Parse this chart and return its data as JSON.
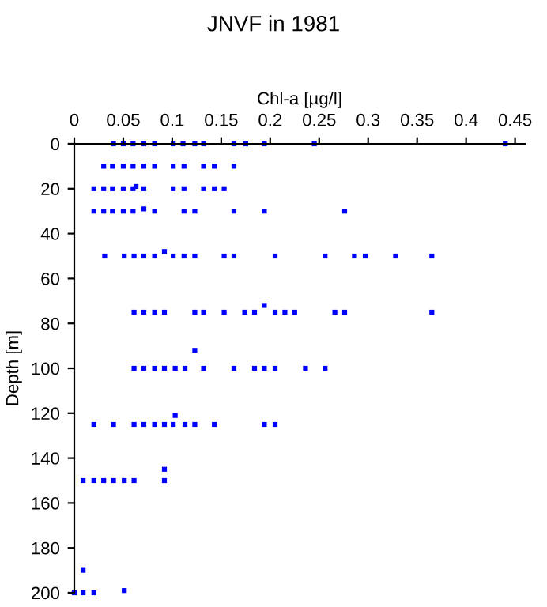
{
  "chart_data": {
    "type": "scatter",
    "title": "JNVF in 1981",
    "xlabel": "Chl-a [µg/l]",
    "ylabel": "Depth [m]",
    "x": [
      0.04,
      0.05,
      0.06,
      0.071,
      0.082,
      0.101,
      0.111,
      0.123,
      0.132,
      0.163,
      0.175,
      0.194,
      0.245,
      0.44,
      0.03,
      0.039,
      0.05,
      0.06,
      0.071,
      0.082,
      0.101,
      0.112,
      0.132,
      0.143,
      0.163,
      0.02,
      0.03,
      0.039,
      0.05,
      0.06,
      0.063,
      0.071,
      0.101,
      0.112,
      0.132,
      0.143,
      0.153,
      0.02,
      0.03,
      0.039,
      0.05,
      0.06,
      0.071,
      0.082,
      0.112,
      0.123,
      0.163,
      0.194,
      0.276,
      0.031,
      0.051,
      0.061,
      0.071,
      0.082,
      0.092,
      0.101,
      0.112,
      0.123,
      0.153,
      0.163,
      0.205,
      0.256,
      0.286,
      0.297,
      0.328,
      0.365,
      0.061,
      0.071,
      0.082,
      0.092,
      0.123,
      0.132,
      0.153,
      0.174,
      0.184,
      0.194,
      0.205,
      0.215,
      0.225,
      0.266,
      0.276,
      0.365,
      0.123,
      0.061,
      0.071,
      0.082,
      0.092,
      0.103,
      0.113,
      0.132,
      0.163,
      0.184,
      0.194,
      0.205,
      0.236,
      0.256,
      0.02,
      0.04,
      0.061,
      0.071,
      0.082,
      0.092,
      0.101,
      0.103,
      0.113,
      0.123,
      0.143,
      0.194,
      0.205,
      0.009,
      0.02,
      0.03,
      0.04,
      0.051,
      0.061,
      0.092,
      0.092,
      0.009,
      0.0,
      0.009,
      0.02,
      0.051
    ],
    "values": [
      0,
      0,
      0,
      0,
      0,
      0,
      0,
      0,
      0,
      0,
      0,
      0,
      0,
      0,
      10,
      10,
      10,
      10,
      10,
      10,
      10,
      10,
      10,
      10,
      10,
      20,
      20,
      20,
      20,
      20,
      19,
      20,
      20,
      20,
      20,
      20,
      20,
      30,
      30,
      30,
      30,
      30,
      29,
      30,
      30,
      30,
      30,
      30,
      30,
      50,
      50,
      50,
      50,
      50,
      48,
      50,
      50,
      50,
      50,
      50,
      50,
      50,
      50,
      50,
      50,
      50,
      75,
      75,
      75,
      75,
      75,
      75,
      75,
      75,
      75,
      72,
      75,
      75,
      75,
      75,
      75,
      75,
      92,
      100,
      100,
      100,
      100,
      100,
      100,
      100,
      100,
      100,
      100,
      100,
      100,
      100,
      125,
      125,
      125,
      125,
      125,
      125,
      125,
      121,
      125,
      125,
      125,
      125,
      125,
      150,
      150,
      150,
      150,
      150,
      150,
      150,
      145,
      190,
      200,
      200,
      200,
      199
    ],
    "color": "#0000ff",
    "marker": "square",
    "grid": false,
    "xlim": [
      0,
      0.46
    ],
    "xticks": [
      0,
      0.05,
      0.1,
      0.15,
      0.2,
      0.25,
      0.3,
      0.35,
      0.4,
      0.45
    ],
    "ylim": [
      200,
      0
    ],
    "yticks": [
      0,
      20,
      40,
      60,
      80,
      100,
      120,
      140,
      160,
      180,
      200
    ]
  }
}
